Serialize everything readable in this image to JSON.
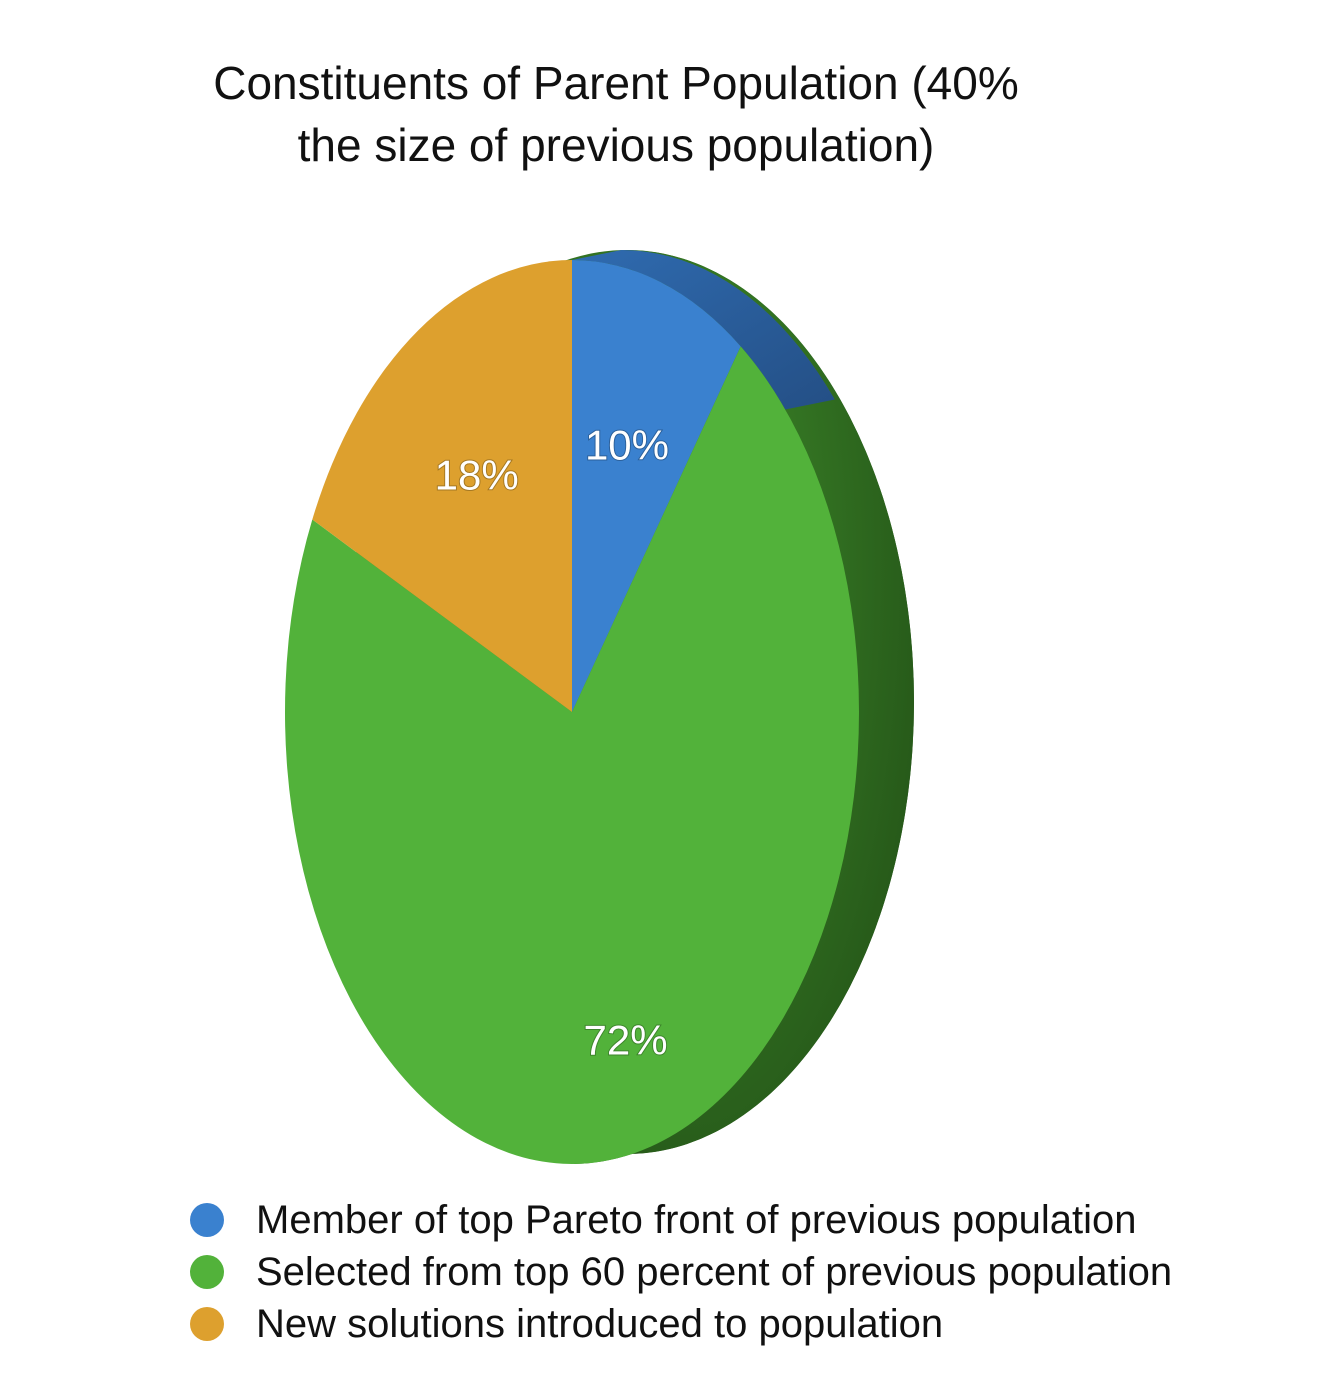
{
  "chart_data": {
    "type": "pie",
    "title_lines": [
      "Constituents of Parent Population (40%",
      "the size of previous population)"
    ],
    "slices": [
      {
        "label": "Member of top Pareto front of previous population",
        "value": 10,
        "value_label": "10%",
        "color": "#3A81CF"
      },
      {
        "label": "Selected from top 60 percent of previous population",
        "value": 72,
        "value_label": "72%",
        "color": "#52B23A"
      },
      {
        "label": "New solutions introduced to population",
        "value": 18,
        "value_label": "18%",
        "color": "#DDA02E"
      }
    ],
    "legend_position": "bottom",
    "three_d": true
  }
}
